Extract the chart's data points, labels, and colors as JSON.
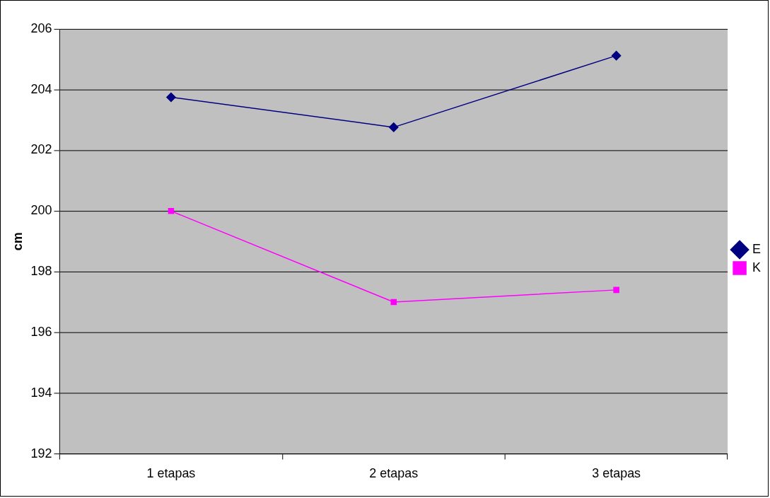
{
  "chart_data": {
    "type": "line",
    "ylabel": "cm",
    "categories": [
      "1 etapas",
      "2 etapas",
      "3 etapas"
    ],
    "series": [
      {
        "name": "E",
        "color": "#000080",
        "marker": "diamond",
        "values": [
          203.75,
          202.76,
          205.12
        ]
      },
      {
        "name": "K",
        "color": "#ff00ff",
        "marker": "square",
        "values": [
          200.0,
          197.0,
          197.4
        ]
      }
    ],
    "ylim": [
      192,
      206
    ],
    "yticks": [
      192,
      194,
      196,
      198,
      200,
      202,
      204,
      206
    ],
    "grid": "y",
    "legend": "right",
    "line_style": "solid"
  }
}
